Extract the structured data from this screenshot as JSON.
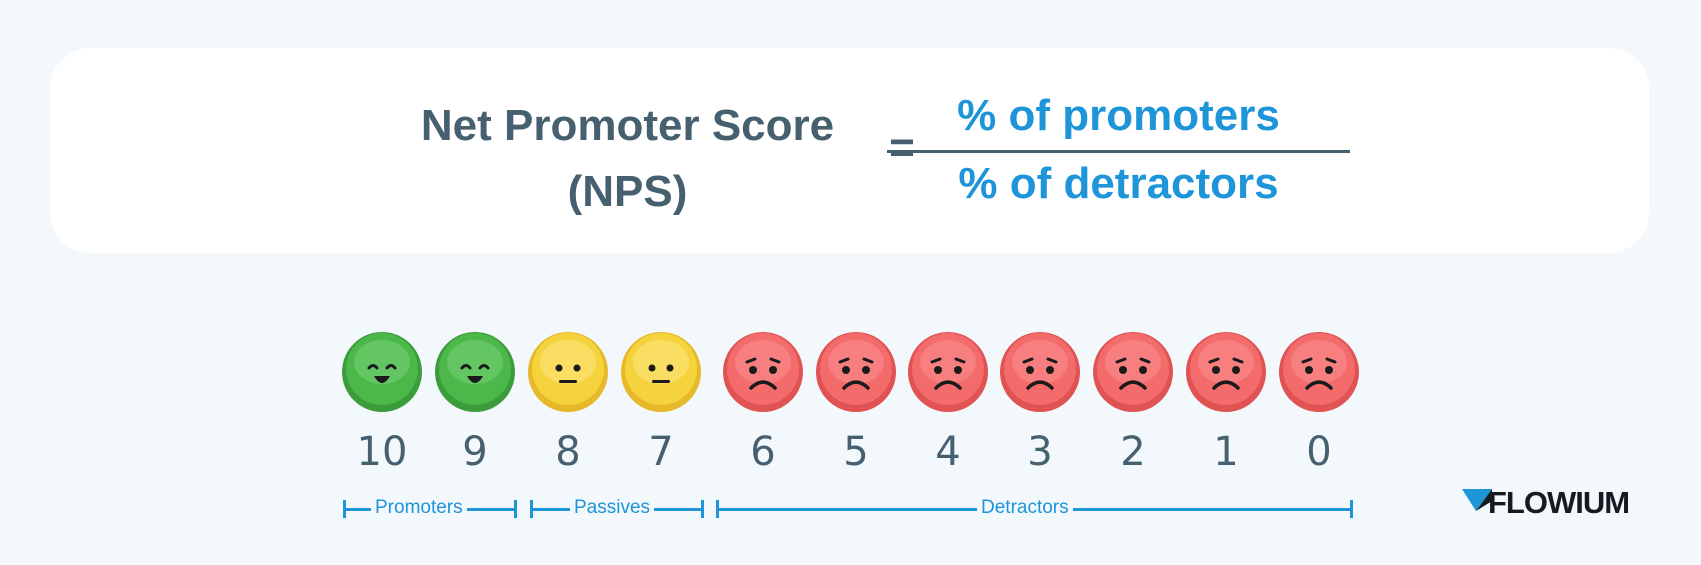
{
  "formula": {
    "lhs_line1": "Net Promoter Score",
    "lhs_line2": "(NPS)",
    "equals": "=",
    "numerator": "% of promoters",
    "denominator": "% of detractors"
  },
  "scale": [
    {
      "score": "10",
      "mood": "happy",
      "color": "#4cb84a"
    },
    {
      "score": "9",
      "mood": "happy",
      "color": "#4cb84a"
    },
    {
      "score": "8",
      "mood": "neutral",
      "color": "#f5d33d"
    },
    {
      "score": "7",
      "mood": "neutral",
      "color": "#f5d33d"
    },
    {
      "score": "6",
      "mood": "sad",
      "color": "#f36b6b"
    },
    {
      "score": "5",
      "mood": "sad",
      "color": "#f36b6b"
    },
    {
      "score": "4",
      "mood": "sad",
      "color": "#f36b6b"
    },
    {
      "score": "3",
      "mood": "sad",
      "color": "#f36b6b"
    },
    {
      "score": "2",
      "mood": "sad",
      "color": "#f36b6b"
    },
    {
      "score": "1",
      "mood": "sad",
      "color": "#f36b6b"
    },
    {
      "score": "0",
      "mood": "sad",
      "color": "#f36b6b"
    }
  ],
  "groups": {
    "promoters": "Promoters",
    "passives": "Passives",
    "detractors": "Detractors"
  },
  "logo": {
    "text": "FLOWIUM",
    "icon": "flowium-logo-icon"
  },
  "colors": {
    "accent": "#1d95d8",
    "dark_text": "#46606f",
    "background": "#f3f8fc"
  }
}
